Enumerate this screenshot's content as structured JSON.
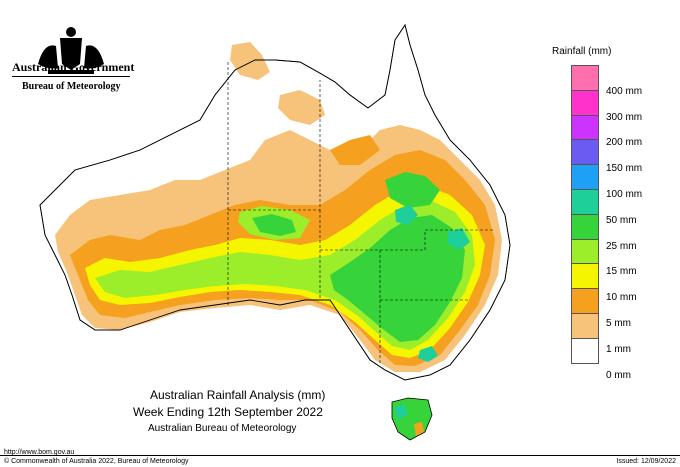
{
  "header": {
    "government": "Australian Government",
    "bureau": "Bureau of Meteorology"
  },
  "legend": {
    "title": "Rainfall (mm)",
    "items": [
      {
        "label": "",
        "color": "#ff6fae"
      },
      {
        "label": "400 mm",
        "color": "#ff33cc"
      },
      {
        "label": "300 mm",
        "color": "#cc33ff"
      },
      {
        "label": "200 mm",
        "color": "#6a5cf0"
      },
      {
        "label": "150 mm",
        "color": "#1ea0f5"
      },
      {
        "label": "100 mm",
        "color": "#1fcf9a"
      },
      {
        "label": "50 mm",
        "color": "#37d33a"
      },
      {
        "label": "25 mm",
        "color": "#9cee2a"
      },
      {
        "label": "15 mm",
        "color": "#f5f500"
      },
      {
        "label": "10 mm",
        "color": "#f5a01e"
      },
      {
        "label": "5 mm",
        "color": "#f7c27a"
      },
      {
        "label": "1 mm",
        "color": "#ffffff"
      },
      {
        "label": "0 mm",
        "color": "#ffffff"
      }
    ]
  },
  "titles": {
    "line1": "Australian Rainfall Analysis (mm)",
    "line2": "Week Ending 12th September 2022",
    "line3": "Australian Bureau of Meteorology"
  },
  "footer": {
    "url": "http://www.bom.gov.au",
    "copyright": "© Commonwealth of Australia 2022, Bureau of Meteorology",
    "issued": "Issued: 12/09/2022"
  },
  "colors": {
    "r1": "#f7c27a",
    "r5": "#f5a01e",
    "r10": "#f5f500",
    "r15": "#9cee2a",
    "r25": "#37d33a",
    "r50": "#1fcf9a",
    "r100": "#1ea0f5"
  }
}
